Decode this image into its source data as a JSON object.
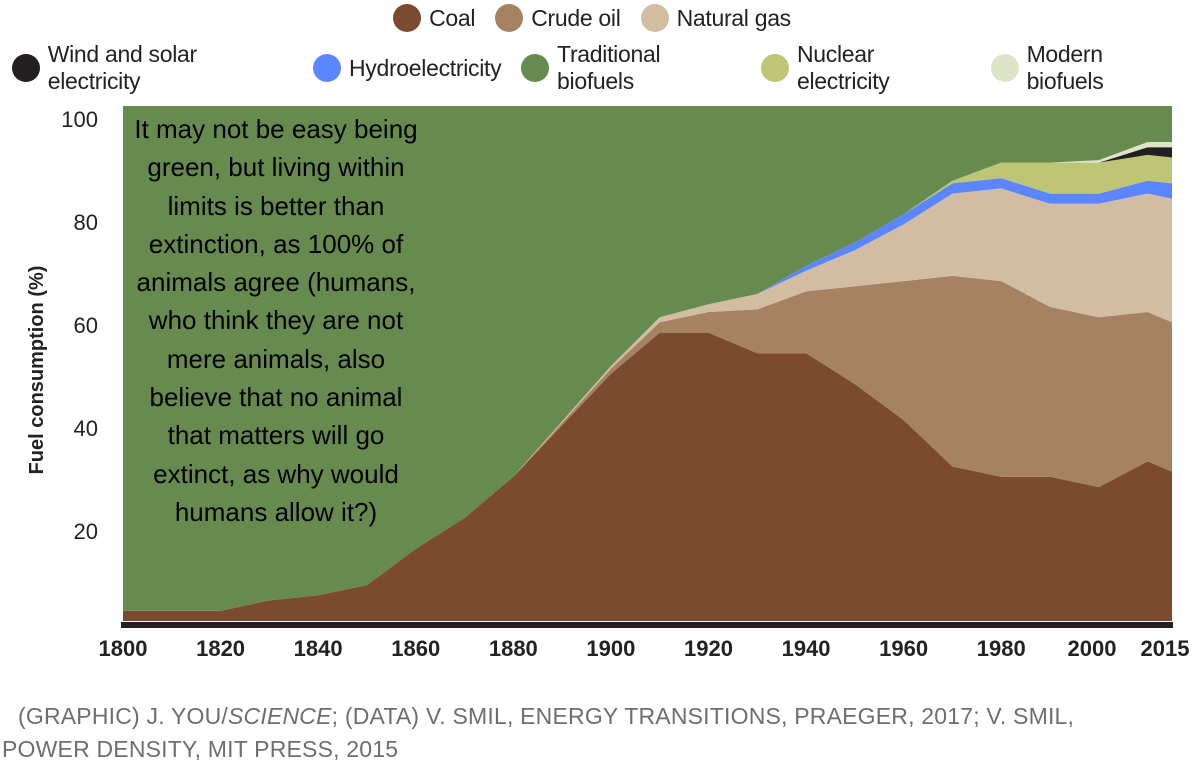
{
  "chart_data": {
    "type": "area",
    "stacked": true,
    "title": "",
    "xlabel": "",
    "ylabel": "Fuel consumption (%)",
    "xlim": [
      1800,
      2015
    ],
    "ylim": [
      0,
      100
    ],
    "x_ticks": [
      "1800",
      "1820",
      "1840",
      "1860",
      "1880",
      "1900",
      "1920",
      "1940",
      "1960",
      "1980",
      "2000",
      "2015"
    ],
    "y_ticks": [
      "20",
      "40",
      "60",
      "80",
      "100"
    ],
    "x": [
      1800,
      1820,
      1830,
      1840,
      1850,
      1860,
      1870,
      1880,
      1890,
      1900,
      1910,
      1920,
      1930,
      1940,
      1950,
      1960,
      1970,
      1980,
      1990,
      2000,
      2010,
      2015
    ],
    "series": [
      {
        "name": "Coal",
        "color": "#7b4a2f",
        "values": [
          2,
          2,
          4,
          5,
          7,
          14,
          20,
          28,
          38,
          48,
          56,
          56,
          52,
          52,
          46,
          39,
          30,
          28,
          28,
          26,
          31,
          29
        ]
      },
      {
        "name": "Crude oil",
        "color": "#a58261",
        "values": [
          0,
          0,
          0,
          0,
          0,
          0,
          0,
          0,
          0.5,
          1,
          2,
          4,
          8.5,
          12,
          19,
          27,
          37,
          38,
          33,
          33,
          29,
          29
        ]
      },
      {
        "name": "Natural gas",
        "color": "#d2bda2",
        "values": [
          0,
          0,
          0,
          0,
          0,
          0,
          0,
          0,
          0.3,
          0.5,
          1,
          1.5,
          3,
          4,
          7,
          11,
          16,
          18,
          20,
          22,
          23,
          24
        ]
      },
      {
        "name": "Hydroelectricity",
        "color": "#5b86ff",
        "values": [
          0,
          0,
          0,
          0,
          0,
          0,
          0,
          0,
          0,
          0,
          0,
          0,
          0,
          1,
          1.5,
          2,
          2,
          2,
          2,
          2,
          2.5,
          3
        ]
      },
      {
        "name": "Nuclear electricity",
        "color": "#bec676",
        "values": [
          0,
          0,
          0,
          0,
          0,
          0,
          0,
          0,
          0,
          0,
          0,
          0,
          0,
          0,
          0,
          0,
          0.5,
          3,
          6,
          6,
          5,
          5
        ]
      },
      {
        "name": "Wind and solar electricity",
        "color": "#231f20",
        "values": [
          0,
          0,
          0,
          0,
          0,
          0,
          0,
          0,
          0,
          0,
          0,
          0,
          0,
          0,
          0,
          0,
          0,
          0,
          0,
          0,
          1.5,
          2
        ]
      },
      {
        "name": "Modern biofuels",
        "color": "#dde5c6",
        "values": [
          0,
          0,
          0,
          0,
          0,
          0,
          0,
          0,
          0,
          0,
          0,
          0,
          0,
          0,
          0,
          0,
          0,
          0,
          0,
          0.5,
          1,
          1
        ]
      },
      {
        "name": "Traditional biofuels",
        "color": "#678a4f",
        "values": [
          98,
          98,
          96,
          95,
          93,
          86,
          80,
          72,
          61.2,
          50.5,
          41,
          38.5,
          36.5,
          31,
          26.5,
          21,
          14.5,
          11,
          11,
          10.5,
          7,
          7
        ]
      }
    ],
    "legend": {
      "placement": "top",
      "row1": [
        {
          "label": "Coal",
          "color": "#7b4a2f"
        },
        {
          "label": "Crude oil",
          "color": "#a58261"
        },
        {
          "label": "Natural gas",
          "color": "#d2bda2"
        }
      ],
      "row2": [
        {
          "label": "Wind and solar electricity",
          "color": "#231f20"
        },
        {
          "label": "Hydroelectricity",
          "color": "#5b86ff"
        },
        {
          "label": "Traditional biofuels",
          "color": "#678a4f"
        },
        {
          "label": "Nuclear electricity",
          "color": "#bec676"
        },
        {
          "label": "Modern biofuels",
          "color": "#dde5c6"
        }
      ]
    },
    "annotation": "It may not be easy being green, but living within limits is better than extinction, as 100% of animals agree (humans, who think they are not mere animals, also believe that no animal that matters will go extinct, as why would humans allow it?)",
    "grid": false
  },
  "caption": {
    "line1_prefix": "(GRAPHIC) J. YOU/",
    "line1_italic": "SCIENCE",
    "line1_suffix": "; (DATA) V. SMIL, ENERGY TRANSITIONS, PRAEGER, 2017; V. SMIL,",
    "line2": "POWER DENSITY, MIT PRESS, 2015"
  },
  "colors": {
    "axis": "#231f20",
    "text": "#222222",
    "caption": "#6e6e6e"
  }
}
